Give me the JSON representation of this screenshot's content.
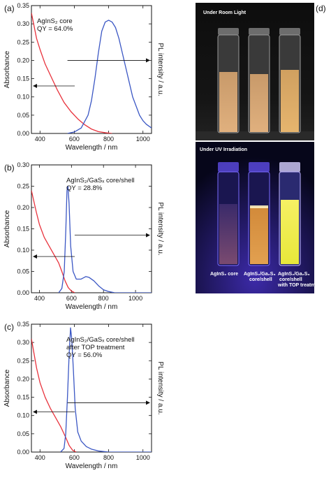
{
  "panel_labels": [
    "(a)",
    "(b)",
    "(c)",
    "(d)"
  ],
  "colors": {
    "absorbance": "#e8323c",
    "pl": "#3b57c4",
    "frame": "#111111"
  },
  "chart_data": [
    {
      "type": "line",
      "panel": "(a)",
      "xlabel": "Wavelength / nm",
      "ylabel": "Absorbance",
      "y2label": "PL intensity / a.u.",
      "xlim": [
        350,
        1050
      ],
      "ylim": [
        0,
        0.35
      ],
      "xticks": [
        400,
        600,
        800,
        1000
      ],
      "yticks": [
        0.0,
        0.05,
        0.1,
        0.15,
        0.2,
        0.25,
        0.3,
        0.35
      ],
      "annotation": [
        "AgInS₂ core",
        "QY = 64.0%"
      ],
      "arrows": {
        "absorbance_y": 0.13,
        "pl_y": 0.2
      },
      "series": [
        {
          "name": "Absorbance",
          "axis": "left",
          "color": "#e8323c",
          "x": [
            350,
            380,
            400,
            430,
            460,
            500,
            540,
            580,
            620,
            660,
            700,
            740,
            780,
            820
          ],
          "y": [
            0.33,
            0.26,
            0.23,
            0.19,
            0.16,
            0.12,
            0.085,
            0.06,
            0.04,
            0.024,
            0.012,
            0.005,
            0.002,
            0.0
          ]
        },
        {
          "name": "PL",
          "axis": "right",
          "color": "#3b57c4",
          "x": [
            560,
            600,
            640,
            680,
            700,
            720,
            740,
            760,
            780,
            800,
            820,
            840,
            860,
            880,
            900,
            920,
            940,
            960,
            980,
            1000,
            1020,
            1050
          ],
          "y": [
            0.0,
            0.004,
            0.015,
            0.05,
            0.09,
            0.15,
            0.22,
            0.28,
            0.305,
            0.31,
            0.305,
            0.29,
            0.26,
            0.22,
            0.18,
            0.14,
            0.1,
            0.075,
            0.05,
            0.035,
            0.025,
            0.015
          ]
        }
      ]
    },
    {
      "type": "line",
      "panel": "(b)",
      "xlabel": "Wavelength / nm",
      "ylabel": "Absorbance",
      "y2label": "PL intensity / a.u.",
      "xlim": [
        350,
        1100
      ],
      "ylim": [
        0,
        0.3
      ],
      "xticks": [
        400,
        600,
        800,
        1000
      ],
      "yticks": [
        0.0,
        0.05,
        0.1,
        0.15,
        0.2,
        0.25,
        0.3
      ],
      "annotation": [
        "AgInS₂/GaSₓ core/shell",
        "QY = 28.8%"
      ],
      "arrows": {
        "absorbance_y": 0.085,
        "pl_y": 0.135
      },
      "series": [
        {
          "name": "Absorbance",
          "axis": "left",
          "color": "#e8323c",
          "x": [
            350,
            380,
            400,
            430,
            460,
            490,
            520,
            540,
            560,
            580,
            600,
            620
          ],
          "y": [
            0.24,
            0.19,
            0.16,
            0.13,
            0.11,
            0.09,
            0.07,
            0.05,
            0.028,
            0.012,
            0.004,
            0.0
          ]
        },
        {
          "name": "PL",
          "axis": "right",
          "color": "#3b57c4",
          "x": [
            520,
            540,
            555,
            565,
            572,
            578,
            585,
            595,
            610,
            630,
            660,
            690,
            710,
            740,
            770,
            800,
            830,
            870,
            1100
          ],
          "y": [
            0.0,
            0.01,
            0.05,
            0.15,
            0.24,
            0.25,
            0.21,
            0.11,
            0.05,
            0.032,
            0.032,
            0.038,
            0.036,
            0.028,
            0.016,
            0.007,
            0.003,
            0.0,
            0.0
          ]
        }
      ]
    },
    {
      "type": "line",
      "panel": "(c)",
      "xlabel": "Wavelength / nm",
      "ylabel": "Absorbance",
      "y2label": "PL intensity / a.u.",
      "xlim": [
        350,
        1050
      ],
      "ylim": [
        0,
        0.35
      ],
      "xticks": [
        400,
        600,
        800,
        1000
      ],
      "yticks": [
        0.0,
        0.05,
        0.1,
        0.15,
        0.2,
        0.25,
        0.3,
        0.35
      ],
      "annotation": [
        "AgInS₂/GaSₓ core/shell",
        "after TOP treatment",
        "QY = 56.0%"
      ],
      "arrows": {
        "absorbance_y": 0.11,
        "pl_y": 0.135
      },
      "series": [
        {
          "name": "Absorbance",
          "axis": "left",
          "color": "#e8323c",
          "x": [
            350,
            380,
            400,
            430,
            460,
            490,
            520,
            550,
            570,
            590,
            610
          ],
          "y": [
            0.31,
            0.23,
            0.19,
            0.15,
            0.12,
            0.095,
            0.07,
            0.04,
            0.018,
            0.005,
            0.0
          ]
        },
        {
          "name": "PL",
          "axis": "right",
          "color": "#3b57c4",
          "x": [
            520,
            540,
            550,
            560,
            570,
            578,
            585,
            595,
            605,
            620,
            640,
            670,
            700,
            740,
            800,
            1050
          ],
          "y": [
            0.0,
            0.01,
            0.05,
            0.15,
            0.27,
            0.34,
            0.31,
            0.22,
            0.12,
            0.055,
            0.03,
            0.015,
            0.008,
            0.003,
            0.0,
            0.0
          ]
        }
      ]
    }
  ],
  "photo": {
    "top_caption": "Under Room Light",
    "bottom_caption": "Under UV Irradiation",
    "vial_labels": [
      [
        "AgInS₂ core"
      ],
      [
        "AgInS₂/Ga₂S₃",
        "core/shell"
      ],
      [
        "AgInS₂/Ga₂S₃",
        "core/shell",
        "with TOP treatment"
      ]
    ]
  }
}
